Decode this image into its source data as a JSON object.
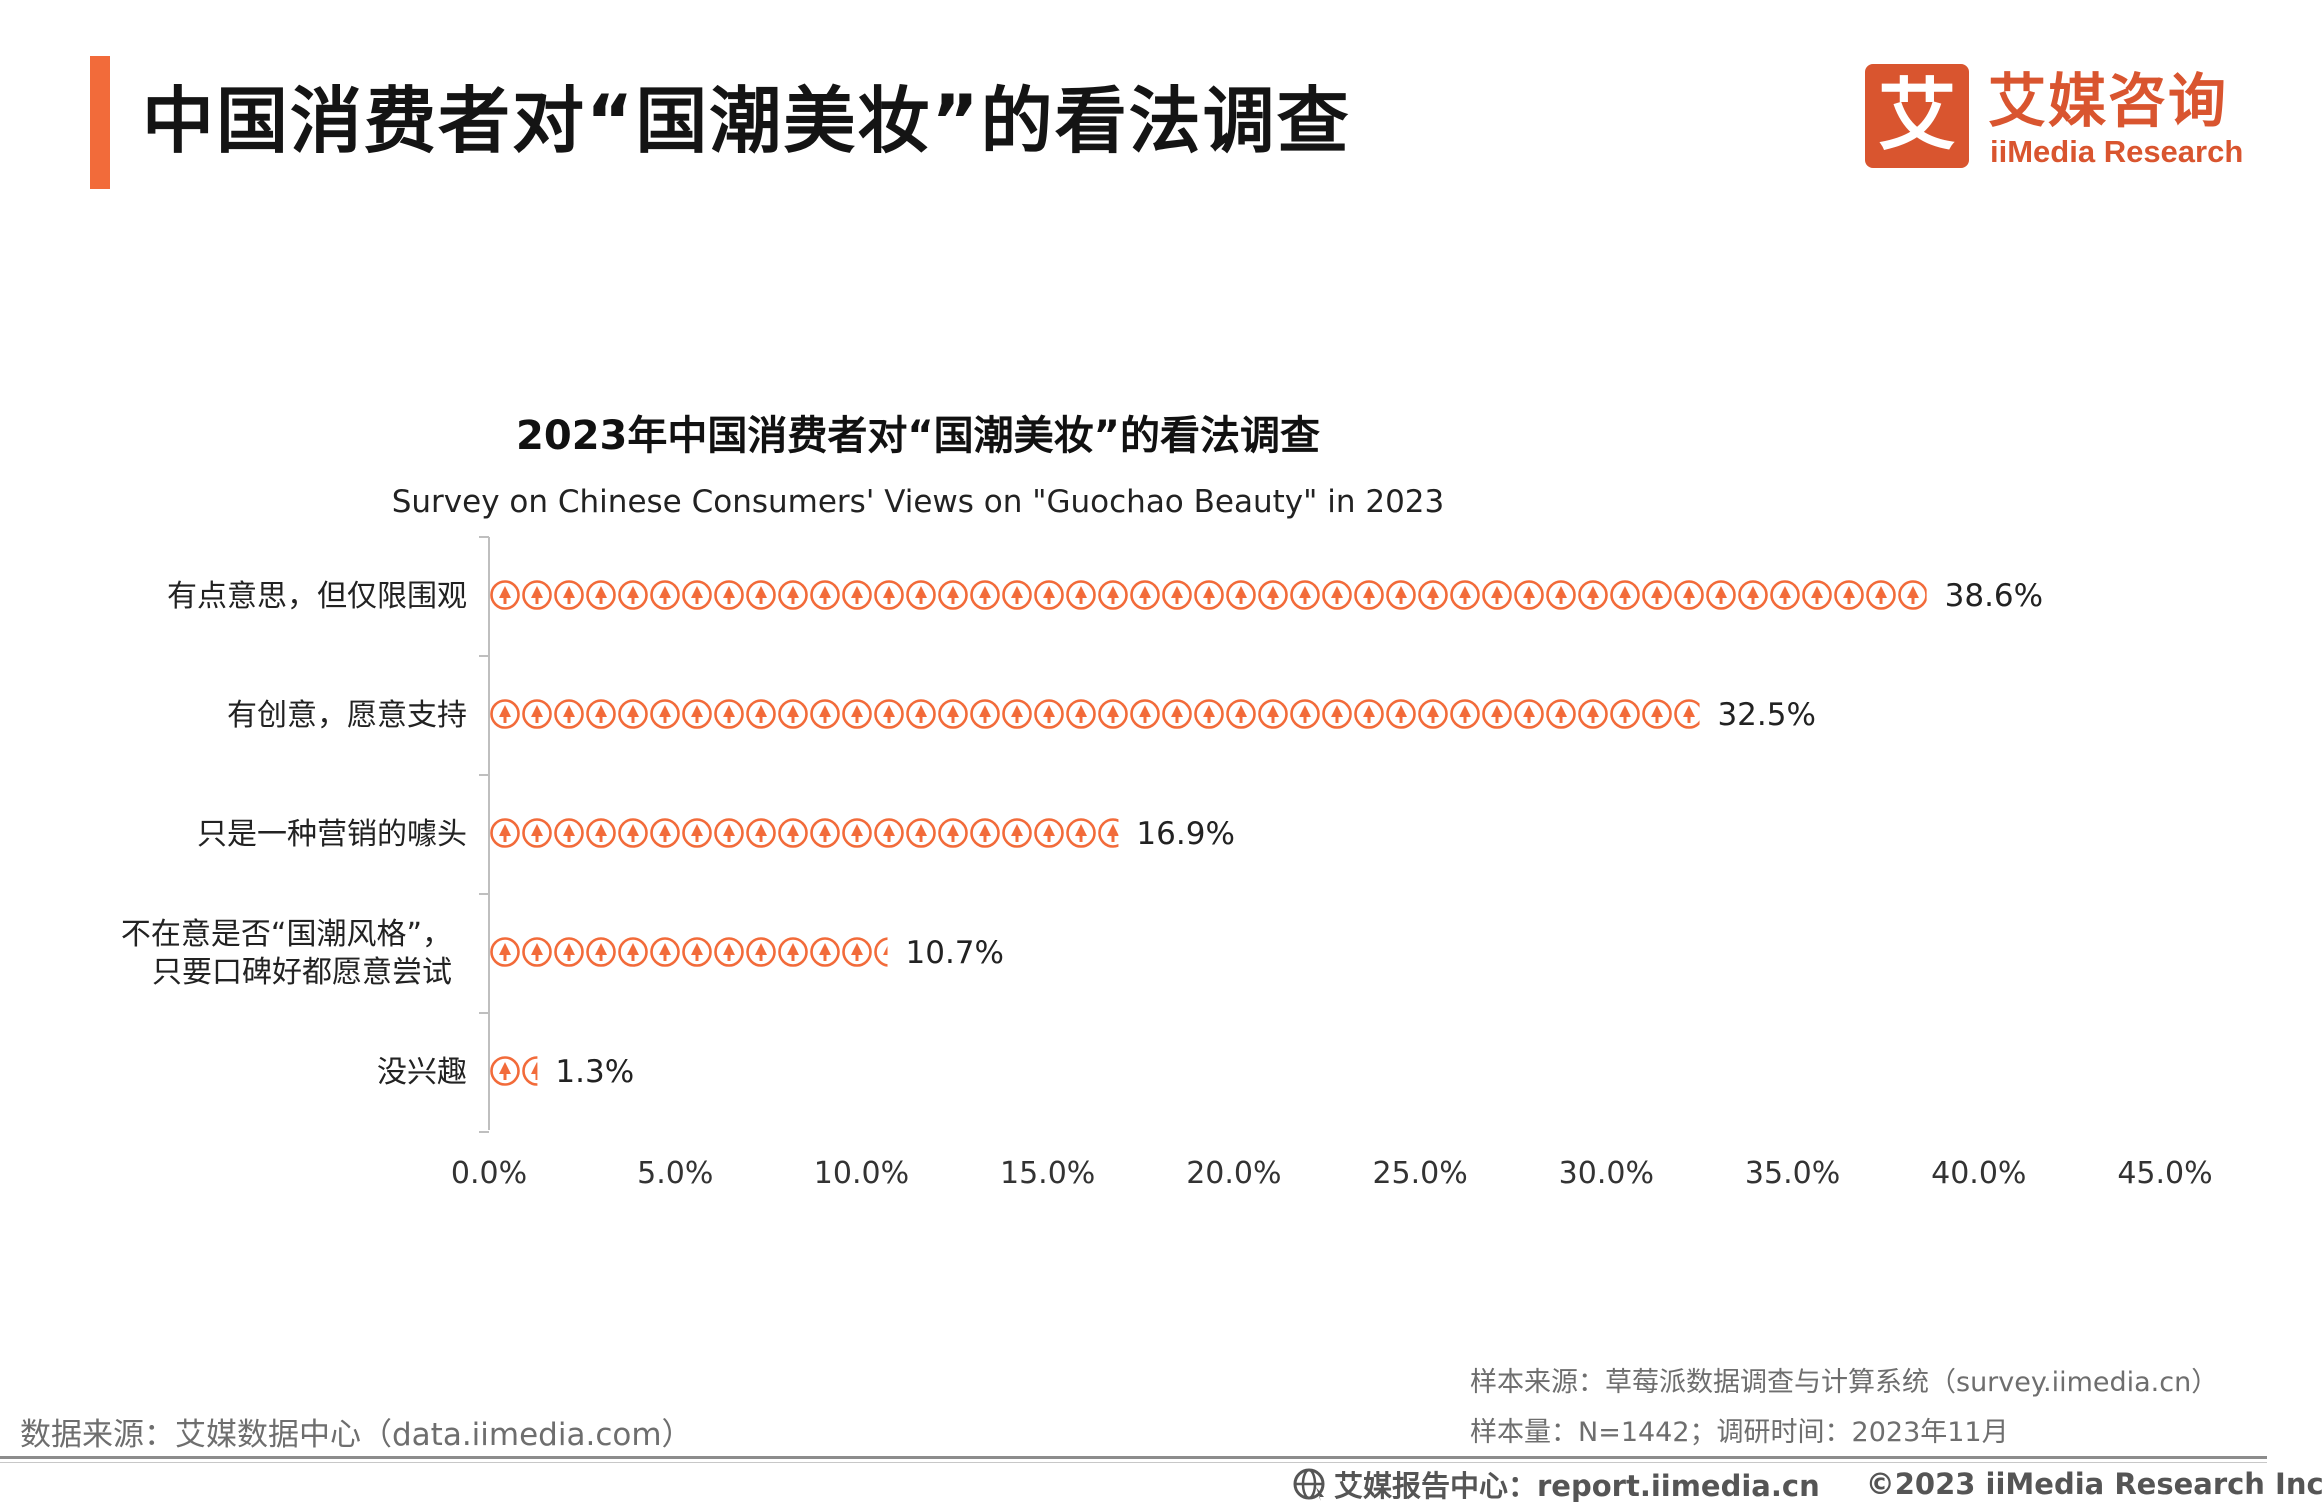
{
  "header": {
    "title": "中国消费者对“国潮美妆”的看法调查",
    "logo_glyph": "艾",
    "logo_cn": "艾媒咨询",
    "logo_en": "iiMedia Research"
  },
  "chart_data": {
    "type": "bar",
    "orientation": "horizontal",
    "title": "2023年中国消费者对“国潮美妆”的看法调查",
    "subtitle": "Survey on Chinese Consumers' Views on \"Guochao Beauty\" in 2023",
    "categories": [
      [
        "有点意思，但仅限围观"
      ],
      [
        "有创意，愿意支持"
      ],
      [
        "只是一种营销的噱头"
      ],
      [
        "不在意是否“国潮风格”，",
        "只要口碑好都愿意尝试"
      ],
      [
        "没兴趣"
      ]
    ],
    "values": [
      38.6,
      32.5,
      16.9,
      10.7,
      1.3
    ],
    "value_labels": [
      "38.6%",
      "32.5%",
      "16.9%",
      "10.7%",
      "1.3%"
    ],
    "xlim": [
      0,
      45
    ],
    "xticks": [
      0,
      5,
      10,
      15,
      20,
      25,
      30,
      35,
      40,
      45
    ],
    "xtick_labels": [
      "0.0%",
      "5.0%",
      "10.0%",
      "15.0%",
      "20.0%",
      "25.0%",
      "30.0%",
      "35.0%",
      "40.0%",
      "45.0%"
    ],
    "marker": "circle-tree-icon",
    "color": "#f26b3a",
    "grid": false
  },
  "footer": {
    "data_source": "数据来源：艾媒数据中心（data.iimedia.com）",
    "sample_source": "样本来源：草莓派数据调查与计算系统（survey.iimedia.cn）",
    "sample_size": "样本量：N=1442；调研时间：2023年11月",
    "report_center": "艾媒报告中心：report.iimedia.cn",
    "copyright": "©2023  iiMedia Research  Inc"
  }
}
